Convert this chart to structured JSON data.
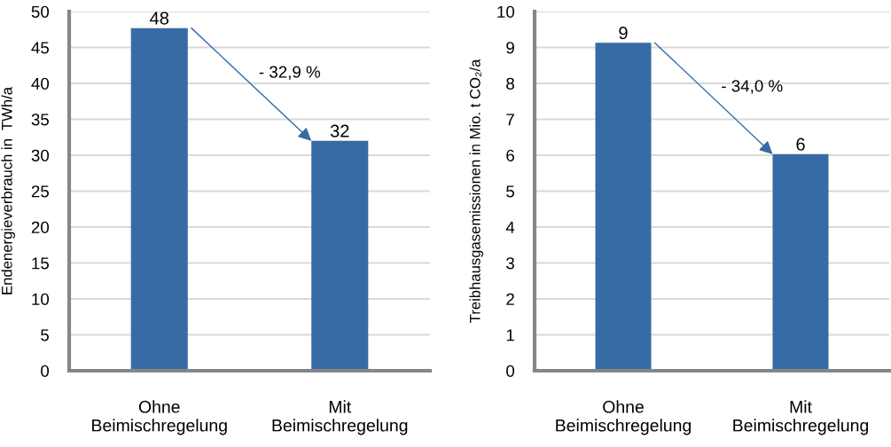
{
  "chart_data": [
    {
      "type": "bar",
      "categories": [
        "Ohne\nBeimischregelung",
        "Mit\nBeimischregelung"
      ],
      "values": [
        47.7,
        32.0
      ],
      "color": "#376ba5",
      "value_labels": [
        "48",
        "32"
      ],
      "ylabel": "Endenergieverbrauch in  TWh/a",
      "ylim": [
        0,
        50
      ],
      "yticks": [
        0,
        5,
        10,
        15,
        20,
        25,
        30,
        35,
        40,
        45,
        50
      ],
      "grid": "y",
      "annotations": [
        "- 32,9 %"
      ]
    },
    {
      "type": "bar",
      "categories": [
        "Ohne\nBeimischregelung",
        "Mit\nBeimischregelung"
      ],
      "values": [
        9.13,
        6.03
      ],
      "color": "#376ba5",
      "value_labels": [
        "9",
        "6"
      ],
      "ylabel": "Treibhausgasemissionen in Mio. t CO₂/a",
      "ylim": [
        0,
        10
      ],
      "yticks": [
        0,
        1,
        2,
        3,
        4,
        5,
        6,
        7,
        8,
        9,
        10
      ],
      "grid": "y",
      "annotations": [
        "- 34,0 %"
      ]
    }
  ]
}
